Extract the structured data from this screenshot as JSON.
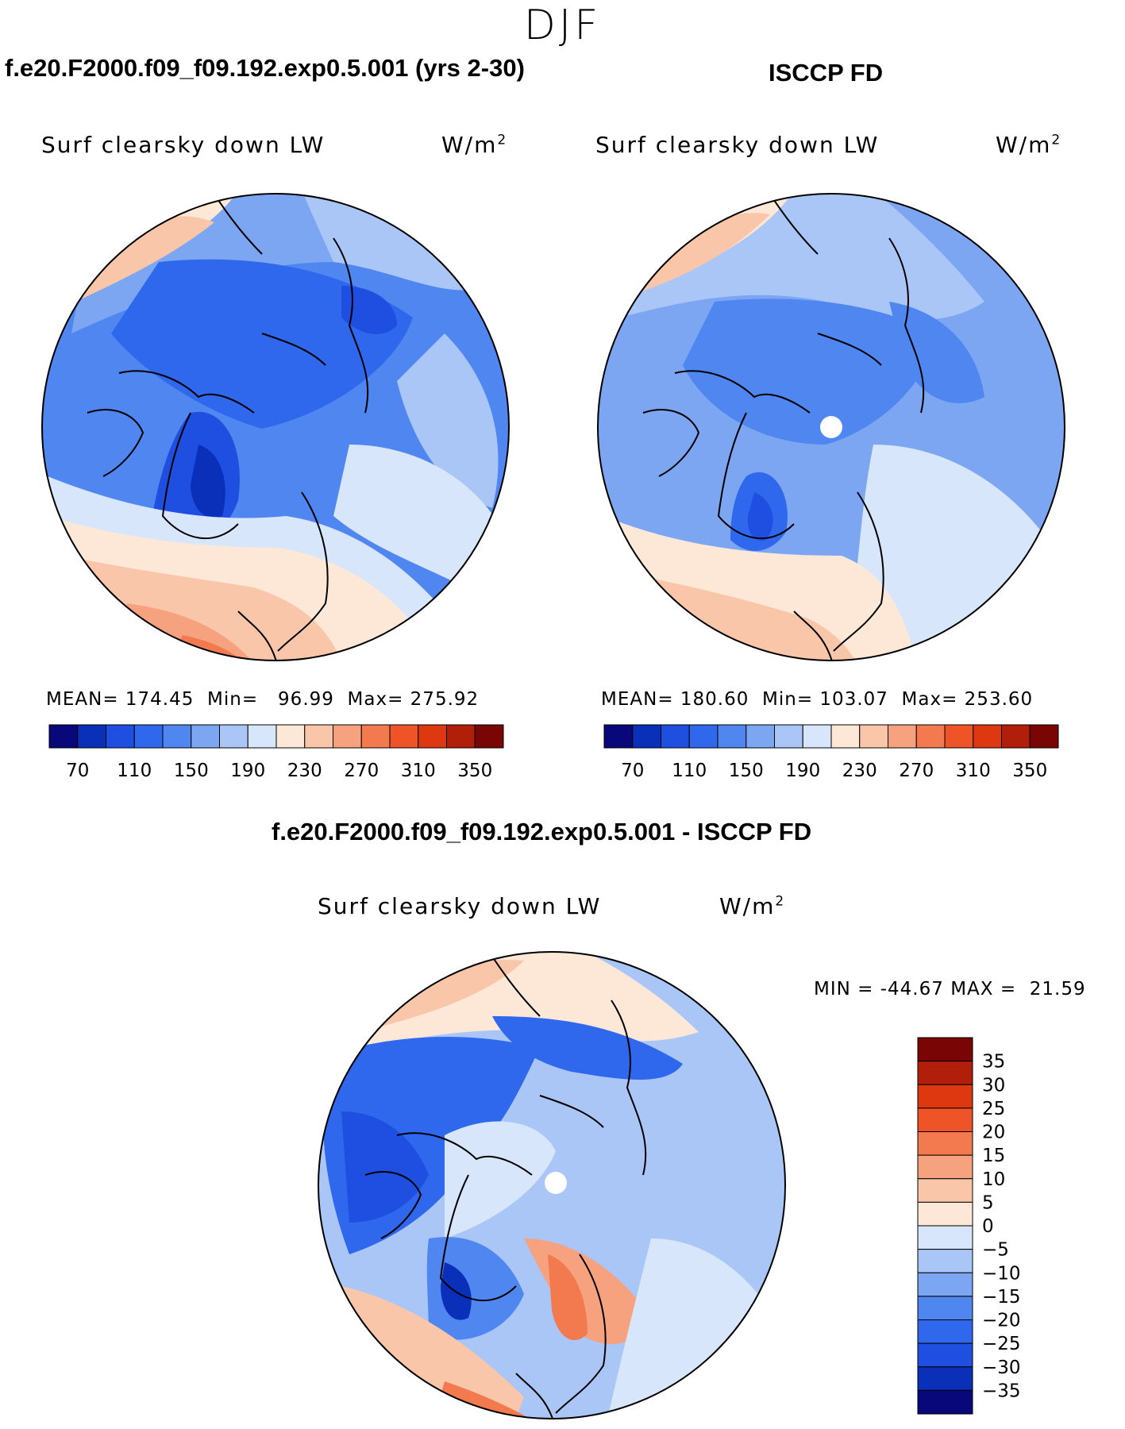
{
  "season": "DJF",
  "panels": [
    {
      "title": "f.e20.F2000.f09_f09.192.exp0.5.001 (yrs 2-30)",
      "variable": "Surf clearsky down LW",
      "units": "W/m",
      "units_exp": "2",
      "stats": {
        "mean_label": "MEAN=",
        "mean": "174.45",
        "min_label": "Min=",
        "min": "96.99",
        "max_label": "Max=",
        "max": "275.92"
      }
    },
    {
      "title": "ISCCP FD",
      "variable": "Surf clearsky down LW",
      "units": "W/m",
      "units_exp": "2",
      "stats": {
        "mean_label": "MEAN=",
        "mean": "180.60",
        "min_label": "Min=",
        "min": "103.07",
        "max_label": "Max=",
        "max": "253.60"
      }
    },
    {
      "title": "f.e20.F2000.f09_f09.192.exp0.5.001 - ISCCP FD",
      "variable": "Surf clearsky down LW",
      "units": "W/m",
      "units_exp": "2",
      "stats": {
        "min_label": "MIN =",
        "min": "-44.67",
        "max_label": "MAX =",
        "max": "21.59"
      }
    }
  ],
  "colors": {
    "abs_scale": [
      "#08087a",
      "#0a2fb8",
      "#1f4fe0",
      "#2f68ec",
      "#4f86f0",
      "#7da6f2",
      "#a9c6f6",
      "#d7e6fa",
      "#fde8d8",
      "#f9c6aa",
      "#f6a27f",
      "#f37a4f",
      "#ee5428",
      "#dd3810",
      "#b11f0a",
      "#7a0505"
    ],
    "diff_scale": [
      "#08087a",
      "#0a2fb8",
      "#1f4fe0",
      "#2f68ec",
      "#4f86f0",
      "#7da6f2",
      "#a9c6f6",
      "#d7e6fa",
      "#fde8d8",
      "#f9c6aa",
      "#f6a27f",
      "#f37a4f",
      "#ee5428",
      "#dd3810",
      "#b11f0a",
      "#7a0505"
    ]
  },
  "chart_data": [
    {
      "type": "heatmap",
      "title": "f.e20.F2000.f09_f09.192.exp0.5.001 (yrs 2-30)",
      "variable": "Surf clearsky down LW",
      "units": "W/m2",
      "projection": "north polar stereographic",
      "colorbar_ticks": [
        70,
        110,
        150,
        190,
        230,
        270,
        310,
        350
      ],
      "colorbar_levels": [
        70,
        90,
        110,
        130,
        150,
        170,
        190,
        210,
        230,
        250,
        270,
        290,
        310,
        330,
        350
      ],
      "mean": 174.45,
      "min": 96.99,
      "max": 275.92
    },
    {
      "type": "heatmap",
      "title": "ISCCP FD",
      "variable": "Surf clearsky down LW",
      "units": "W/m2",
      "projection": "north polar stereographic",
      "colorbar_ticks": [
        70,
        110,
        150,
        190,
        230,
        270,
        310,
        350
      ],
      "colorbar_levels": [
        70,
        90,
        110,
        130,
        150,
        170,
        190,
        210,
        230,
        250,
        270,
        290,
        310,
        330,
        350
      ],
      "mean": 180.6,
      "min": 103.07,
      "max": 253.6
    },
    {
      "type": "heatmap",
      "title": "f.e20.F2000.f09_f09.192.exp0.5.001 - ISCCP FD",
      "variable": "Surf clearsky down LW",
      "units": "W/m2",
      "projection": "north polar stereographic",
      "colorbar_ticks": [
        35,
        30,
        25,
        20,
        15,
        10,
        5,
        0,
        -5,
        -10,
        -15,
        -20,
        -25,
        -30,
        -35
      ],
      "min": -44.67,
      "max": 21.59
    }
  ]
}
